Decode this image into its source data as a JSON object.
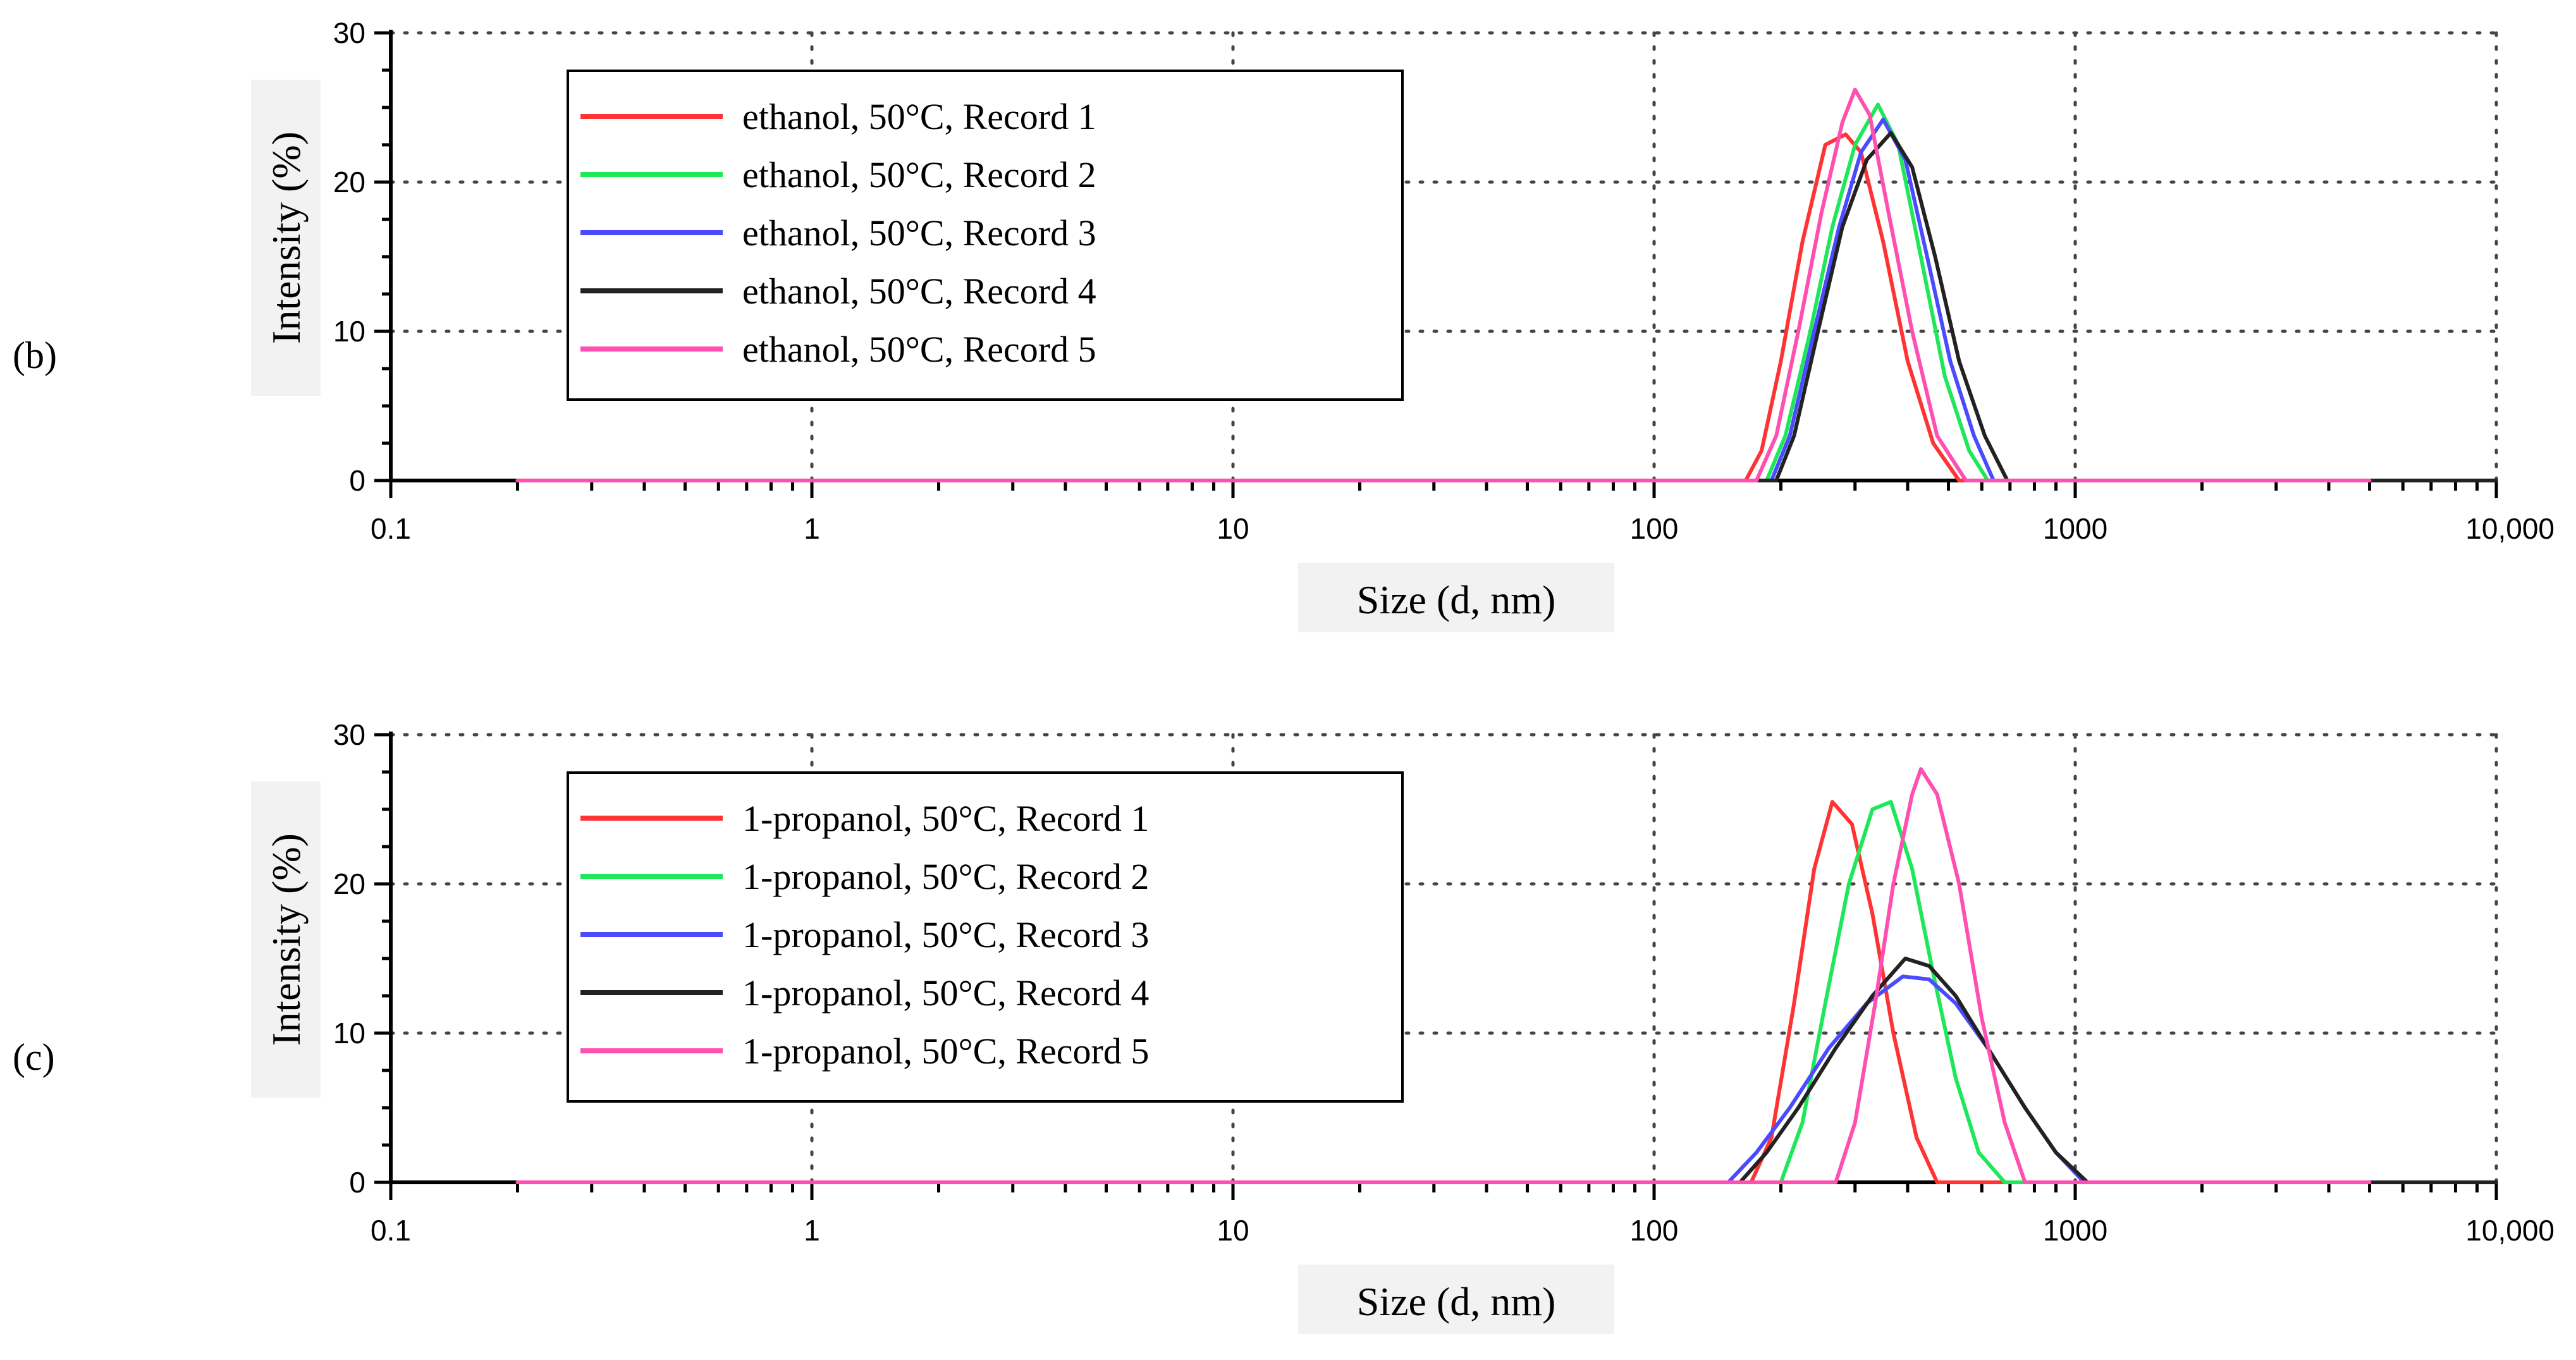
{
  "chart_data": [
    {
      "panel": "(b)",
      "type": "line",
      "xscale": "log",
      "xlim": [
        0.1,
        10000
      ],
      "ylim": [
        0,
        30
      ],
      "xlabel": "Size (d, nm)",
      "ylabel": "Intensity (%)",
      "grid": "dotted",
      "legend_position": "top-left",
      "xticks": [
        {
          "value": 0.1,
          "label": "0.1"
        },
        {
          "value": 1,
          "label": "1"
        },
        {
          "value": 10,
          "label": "10"
        },
        {
          "value": 100,
          "label": "100"
        },
        {
          "value": 1000,
          "label": "1000"
        },
        {
          "value": 10000,
          "label": "10,000"
        }
      ],
      "yticks": [
        {
          "value": 0,
          "label": "0"
        },
        {
          "value": 10,
          "label": "10"
        },
        {
          "value": 20,
          "label": "20"
        },
        {
          "value": 30,
          "label": "30"
        }
      ],
      "series": [
        {
          "name": "ethanol, 50°C, Record 1",
          "color": "#ff3333",
          "x": [
            0.2,
            165,
            180,
            200,
            225,
            255,
            285,
            310,
            350,
            400,
            460,
            530,
            5000
          ],
          "y": [
            0,
            0,
            2,
            8,
            16,
            22.5,
            23.2,
            22,
            16,
            8,
            2.5,
            0,
            0
          ]
        },
        {
          "name": "ethanol, 50°C, Record 2",
          "color": "#1ee85a",
          "x": [
            0.2,
            185,
            205,
            235,
            265,
            300,
            340,
            380,
            430,
            490,
            560,
            620,
            5000
          ],
          "y": [
            0,
            0,
            3,
            10,
            17,
            22.5,
            25.2,
            22.5,
            15,
            7,
            2,
            0,
            0
          ]
        },
        {
          "name": "ethanol, 50°C, Record 3",
          "color": "#4a4aff",
          "x": [
            0.2,
            190,
            210,
            240,
            275,
            310,
            350,
            395,
            445,
            505,
            575,
            640,
            5000
          ],
          "y": [
            0,
            0,
            3,
            10,
            17,
            22,
            24.2,
            21.5,
            15,
            8,
            3,
            0,
            0
          ]
        },
        {
          "name": "ethanol, 50°C, Record 4",
          "color": "#222222",
          "x": [
            0.2,
            195,
            215,
            245,
            280,
            320,
            365,
            410,
            465,
            530,
            610,
            690,
            10000
          ],
          "y": [
            0,
            0,
            3,
            10,
            17,
            21.5,
            23.3,
            21,
            15,
            8,
            3,
            0,
            0
          ]
        },
        {
          "name": "ethanol, 50°C, Record 5",
          "color": "#ff4fb0",
          "x": [
            0.2,
            175,
            195,
            220,
            250,
            280,
            300,
            325,
            360,
            410,
            470,
            550,
            5000
          ],
          "y": [
            0,
            0,
            3,
            10,
            18,
            24,
            26.2,
            24.5,
            18,
            10,
            3,
            0,
            0
          ]
        }
      ]
    },
    {
      "panel": "(c)",
      "type": "line",
      "xscale": "log",
      "xlim": [
        0.1,
        10000
      ],
      "ylim": [
        0,
        30
      ],
      "xlabel": "Size (d, nm)",
      "ylabel": "Intensity (%)",
      "grid": "dotted",
      "legend_position": "top-left",
      "xticks": [
        {
          "value": 0.1,
          "label": "0.1"
        },
        {
          "value": 1,
          "label": "1"
        },
        {
          "value": 10,
          "label": "10"
        },
        {
          "value": 100,
          "label": "100"
        },
        {
          "value": 1000,
          "label": "1000"
        },
        {
          "value": 10000,
          "label": "10,000"
        }
      ],
      "yticks": [
        {
          "value": 0,
          "label": "0"
        },
        {
          "value": 10,
          "label": "10"
        },
        {
          "value": 20,
          "label": "20"
        },
        {
          "value": 30,
          "label": "30"
        }
      ],
      "series": [
        {
          "name": "1-propanol, 50°C, Record 1",
          "color": "#ff3333",
          "x": [
            0.2,
            170,
            190,
            215,
            240,
            265,
            295,
            330,
            370,
            420,
            470,
            5000
          ],
          "y": [
            0,
            0,
            3,
            12,
            21,
            25.5,
            24,
            18,
            10,
            3,
            0,
            0
          ]
        },
        {
          "name": "1-propanol, 50°C, Record 2",
          "color": "#1ee85a",
          "x": [
            0.2,
            200,
            225,
            255,
            290,
            330,
            365,
            410,
            460,
            520,
            590,
            680,
            5000
          ],
          "y": [
            0,
            0,
            4,
            12,
            20,
            25,
            25.5,
            21,
            14,
            7,
            2,
            0,
            0
          ]
        },
        {
          "name": "1-propanol, 50°C, Record 3",
          "color": "#4a4aff",
          "x": [
            0.2,
            150,
            175,
            210,
            260,
            320,
            390,
            450,
            520,
            620,
            760,
            900,
            1050,
            5000
          ],
          "y": [
            0,
            0,
            2,
            5,
            9,
            12,
            13.8,
            13.6,
            12,
            9,
            5,
            2,
            0,
            0
          ]
        },
        {
          "name": "1-propanol, 50°C, Record 4",
          "color": "#222222",
          "x": [
            0.2,
            160,
            185,
            220,
            270,
            330,
            395,
            450,
            520,
            620,
            760,
            900,
            1070,
            10000
          ],
          "y": [
            0,
            0,
            2,
            5,
            9,
            12.5,
            15,
            14.5,
            12.5,
            9,
            5,
            2,
            0,
            0
          ]
        },
        {
          "name": "1-propanol, 50°C, Record 5",
          "color": "#ff4fb0",
          "x": [
            0.2,
            270,
            300,
            335,
            370,
            410,
            430,
            470,
            530,
            600,
            680,
            760,
            5000
          ],
          "y": [
            0,
            0,
            4,
            12,
            20,
            26,
            27.7,
            26,
            20,
            11,
            4,
            0,
            0
          ]
        }
      ]
    }
  ]
}
